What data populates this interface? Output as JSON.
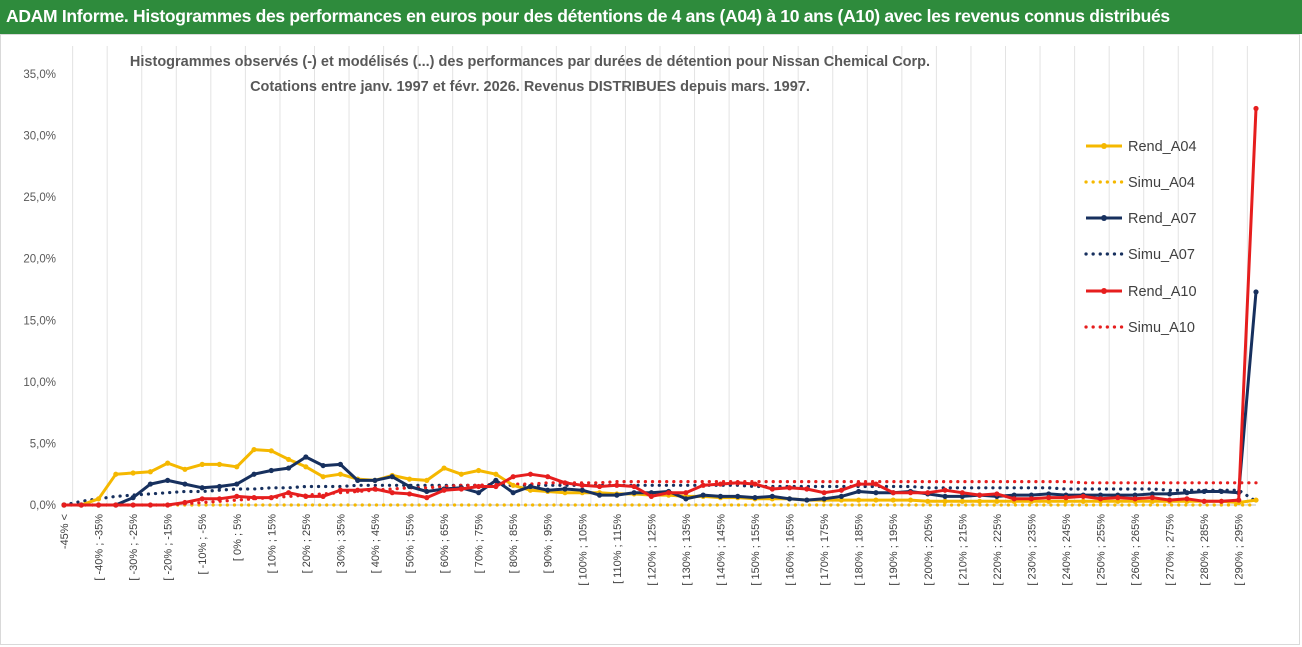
{
  "header": {
    "title": "ADAM Informe. Histogrammes des performances en euros pour des détentions de 4 ans (A04) à 10 ans (A10) avec les revenus connus distribués"
  },
  "chart_data": {
    "type": "line",
    "title": "Histogrammes observés (-) et modélisés (...) des performances par durées de détention pour Nissan Chemical Corp.",
    "subtitle": "Cotations entre janv. 1997 et févr. 2026. Revenus DISTRIBUES depuis mars. 1997.",
    "xlabel": "",
    "ylabel": "",
    "ylim": [
      0,
      0.35
    ],
    "yticks": [
      "0,0%",
      "5,0%",
      "10,0%",
      "15,0%",
      "20,0%",
      "25,0%",
      "30,0%",
      "35,0%"
    ],
    "x_labels": [
      "-45% <",
      "[ -40% ; -35%",
      "[ -30% ; -25%",
      "[ -20% ; -15%",
      "[ -10% ; -5%",
      "[ 0% ; 5%",
      "[ 10% ; 15%",
      "[ 20% ; 25%",
      "[ 30% ; 35%",
      "[ 40% ; 45%",
      "[ 50% ; 55%",
      "[ 60% ; 65%",
      "[ 70% ; 75%",
      "[ 80% ; 85%",
      "[ 90% ; 95%",
      "[ 100% ; 105%",
      "[ 110% ; 115%",
      "[ 120% ; 125%",
      "[ 130% ; 135%",
      "[ 140% ; 145%",
      "[ 150% ; 155%",
      "[ 160% ; 165%",
      "[ 170% ; 175%",
      "[ 180% ; 185%",
      "[ 190% ; 195%",
      "[ 200% ; 205%",
      "[ 210% ; 215%",
      "[ 220% ; 225%",
      "[ 230% ; 235%",
      "[ 240% ; 245%",
      "[ 250% ; 255%",
      "[ 260% ; 265%",
      "[ 270% ; 275%",
      "[ 280% ; 285%",
      "[ 290% ; 295%"
    ],
    "n_bins": 70,
    "series": [
      {
        "name": "Rend_A04",
        "color": "#f5b800",
        "style": "solid",
        "marker": true,
        "values": [
          0,
          0,
          0.005,
          0.025,
          0.026,
          0.027,
          0.034,
          0.029,
          0.033,
          0.033,
          0.031,
          0.045,
          0.044,
          0.037,
          0.031,
          0.023,
          0.025,
          0.021,
          0.02,
          0.024,
          0.021,
          0.02,
          0.03,
          0.025,
          0.028,
          0.025,
          0.016,
          0.012,
          0.011,
          0.01,
          0.01,
          0.01,
          0.009,
          0.009,
          0.008,
          0.008,
          0.007,
          0.007,
          0.006,
          0.006,
          0.005,
          0.005,
          0.005,
          0.004,
          0.004,
          0.004,
          0.004,
          0.004,
          0.004,
          0.004,
          0.003,
          0.003,
          0.003,
          0.003,
          0.003,
          0.003,
          0.003,
          0.003,
          0.003,
          0.003,
          0.003,
          0.003,
          0.003,
          0.003,
          0.003,
          0.003,
          0.003,
          0.003,
          0.002,
          0.004
        ]
      },
      {
        "name": "Simu_A04",
        "color": "#f5b800",
        "style": "dotted",
        "marker": false,
        "values": [
          0,
          0,
          0,
          0,
          0,
          0,
          0,
          0,
          0,
          0,
          0,
          0,
          0,
          0,
          0,
          0,
          0,
          0,
          0,
          0,
          0,
          0,
          0,
          0,
          0,
          0,
          0,
          0,
          0,
          0,
          0,
          0,
          0,
          0,
          0,
          0,
          0,
          0,
          0,
          0,
          0,
          0,
          0,
          0,
          0,
          0,
          0,
          0,
          0,
          0,
          0,
          0,
          0,
          0,
          0,
          0,
          0,
          0,
          0,
          0,
          0,
          0,
          0,
          0,
          0,
          0,
          0,
          0,
          0,
          0
        ]
      },
      {
        "name": "Rend_A07",
        "color": "#17305e",
        "style": "solid",
        "marker": true,
        "values": [
          0,
          0,
          0,
          0,
          0.006,
          0.017,
          0.02,
          0.017,
          0.014,
          0.015,
          0.017,
          0.025,
          0.028,
          0.03,
          0.039,
          0.032,
          0.033,
          0.02,
          0.02,
          0.023,
          0.015,
          0.011,
          0.013,
          0.014,
          0.01,
          0.02,
          0.01,
          0.015,
          0.012,
          0.013,
          0.012,
          0.008,
          0.008,
          0.01,
          0.01,
          0.011,
          0.005,
          0.008,
          0.007,
          0.007,
          0.006,
          0.007,
          0.005,
          0.004,
          0.005,
          0.007,
          0.011,
          0.01,
          0.01,
          0.011,
          0.009,
          0.007,
          0.007,
          0.008,
          0.007,
          0.008,
          0.008,
          0.009,
          0.008,
          0.008,
          0.008,
          0.008,
          0.008,
          0.009,
          0.009,
          0.01,
          0.011,
          0.011,
          0.01,
          0.173
        ]
      },
      {
        "name": "Simu_A07",
        "color": "#17305e",
        "style": "dotted",
        "marker": false,
        "values": [
          0,
          0.003,
          0.005,
          0.007,
          0.008,
          0.009,
          0.01,
          0.011,
          0.011,
          0.012,
          0.013,
          0.013,
          0.014,
          0.014,
          0.015,
          0.015,
          0.015,
          0.016,
          0.016,
          0.016,
          0.016,
          0.016,
          0.016,
          0.016,
          0.016,
          0.016,
          0.016,
          0.016,
          0.016,
          0.016,
          0.016,
          0.016,
          0.016,
          0.016,
          0.016,
          0.016,
          0.016,
          0.016,
          0.016,
          0.016,
          0.015,
          0.015,
          0.015,
          0.015,
          0.015,
          0.015,
          0.015,
          0.015,
          0.015,
          0.015,
          0.014,
          0.014,
          0.014,
          0.014,
          0.014,
          0.014,
          0.014,
          0.014,
          0.013,
          0.013,
          0.013,
          0.013,
          0.013,
          0.013,
          0.012,
          0.012,
          0.012,
          0.012,
          0.012,
          0.003
        ]
      },
      {
        "name": "Rend_A10",
        "color": "#e61e1e",
        "style": "solid",
        "marker": true,
        "values": [
          0,
          0,
          0,
          0,
          0,
          0,
          0,
          0.002,
          0.005,
          0.005,
          0.007,
          0.006,
          0.006,
          0.01,
          0.007,
          0.007,
          0.012,
          0.012,
          0.013,
          0.01,
          0.009,
          0.006,
          0.012,
          0.013,
          0.015,
          0.015,
          0.023,
          0.025,
          0.023,
          0.018,
          0.016,
          0.015,
          0.016,
          0.015,
          0.007,
          0.01,
          0.01,
          0.016,
          0.017,
          0.018,
          0.017,
          0.013,
          0.014,
          0.013,
          0.01,
          0.012,
          0.017,
          0.017,
          0.01,
          0.01,
          0.01,
          0.012,
          0.01,
          0.008,
          0.009,
          0.005,
          0.005,
          0.006,
          0.006,
          0.007,
          0.005,
          0.006,
          0.005,
          0.006,
          0.004,
          0.005,
          0.003,
          0.003,
          0.004,
          0.322
        ]
      },
      {
        "name": "Simu_A10",
        "color": "#e61e1e",
        "style": "dotted",
        "marker": false,
        "values": [
          0,
          0,
          0,
          0,
          0,
          0,
          0,
          0.001,
          0.002,
          0.003,
          0.004,
          0.005,
          0.006,
          0.007,
          0.008,
          0.009,
          0.01,
          0.011,
          0.012,
          0.013,
          0.014,
          0.014,
          0.015,
          0.016,
          0.016,
          0.017,
          0.017,
          0.017,
          0.018,
          0.018,
          0.018,
          0.018,
          0.019,
          0.019,
          0.019,
          0.019,
          0.019,
          0.019,
          0.019,
          0.019,
          0.019,
          0.019,
          0.019,
          0.019,
          0.019,
          0.019,
          0.019,
          0.019,
          0.019,
          0.019,
          0.019,
          0.019,
          0.019,
          0.019,
          0.019,
          0.019,
          0.019,
          0.019,
          0.019,
          0.018,
          0.018,
          0.018,
          0.018,
          0.018,
          0.018,
          0.018,
          0.018,
          0.018,
          0.018,
          0.018
        ]
      }
    ],
    "legend": {
      "position": "right",
      "entries": [
        "Rend_A04",
        "Simu_A04",
        "Rend_A07",
        "Simu_A07",
        "Rend_A10",
        "Simu_A10"
      ]
    }
  }
}
